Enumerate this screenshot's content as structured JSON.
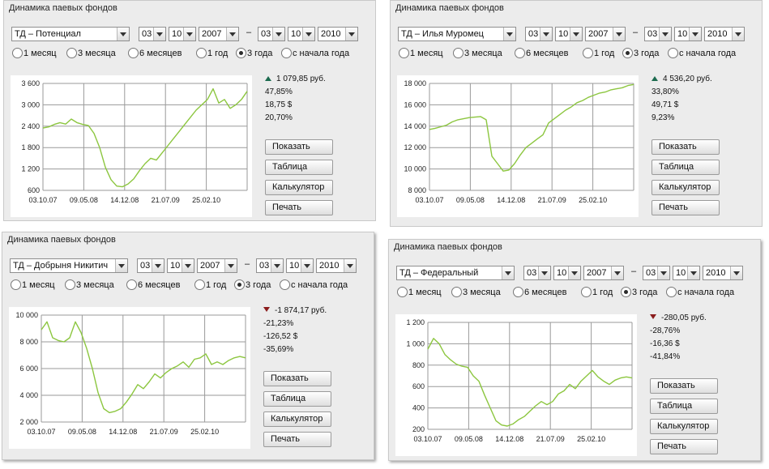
{
  "panels": [
    {
      "title": "Динамика паевых фондов",
      "fund": "ТД – Потенциал",
      "from": {
        "day": "03",
        "month": "10",
        "year": "2007"
      },
      "to": {
        "day": "03",
        "month": "10",
        "year": "2010"
      },
      "dash": "–",
      "periods": [
        "1 месяц",
        "3 месяца",
        "6 месяцев",
        "1 год",
        "3 года",
        "с начала года"
      ],
      "selected_period": "3 года",
      "change": {
        "direction": "up",
        "rub": "1 079,85 руб.",
        "pct": "47,85%",
        "usd": "18,75 $",
        "usd_pct": "20,70%"
      },
      "buttons": {
        "show": "Показать",
        "table": "Таблица",
        "calc": "Калькулятор",
        "print": "Печать"
      }
    },
    {
      "title": "Динамика паевых фондов",
      "fund": "ТД – Илья Муромец",
      "from": {
        "day": "03",
        "month": "10",
        "year": "2007"
      },
      "to": {
        "day": "03",
        "month": "10",
        "year": "2010"
      },
      "dash": "–",
      "periods": [
        "1 месяц",
        "3 месяца",
        "6 месяцев",
        "1 год",
        "3 года",
        "с начала года"
      ],
      "selected_period": "3 года",
      "change": {
        "direction": "up",
        "rub": "4 536,20 руб.",
        "pct": "33,80%",
        "usd": "49,71 $",
        "usd_pct": "9,23%"
      },
      "buttons": {
        "show": "Показать",
        "table": "Таблица",
        "calc": "Калькулятор",
        "print": "Печать"
      }
    },
    {
      "title": "Динамика паевых фондов",
      "fund": "ТД – Добрыня Никитич",
      "from": {
        "day": "03",
        "month": "10",
        "year": "2007"
      },
      "to": {
        "day": "03",
        "month": "10",
        "year": "2010"
      },
      "dash": "–",
      "periods": [
        "1 месяц",
        "3 месяца",
        "6 месяцев",
        "1 год",
        "3 года",
        "с начала года"
      ],
      "selected_period": "3 года",
      "change": {
        "direction": "down",
        "rub": "-1 874,17 руб.",
        "pct": "-21,23%",
        "usd": "-126,52 $",
        "usd_pct": "-35,69%"
      },
      "buttons": {
        "show": "Показать",
        "table": "Таблица",
        "calc": "Калькулятор",
        "print": "Печать"
      }
    },
    {
      "title": "Динамика паевых фондов",
      "fund": "ТД – Федеральный",
      "from": {
        "day": "03",
        "month": "10",
        "year": "2007"
      },
      "to": {
        "day": "03",
        "month": "10",
        "year": "2010"
      },
      "dash": "–",
      "periods": [
        "1 месяц",
        "3 месяца",
        "6 месяцев",
        "1 год",
        "3 года",
        "с начала года"
      ],
      "selected_period": "3 года",
      "change": {
        "direction": "down",
        "rub": "-280,05 руб.",
        "pct": "-28,76%",
        "usd": "-16,36 $",
        "usd_pct": "-41,84%"
      },
      "buttons": {
        "show": "Показать",
        "table": "Таблица",
        "calc": "Калькулятор",
        "print": "Печать"
      }
    }
  ],
  "colors": {
    "line": "#8cc63f",
    "grid": "#9a9a9a",
    "up": "#1c6b4f",
    "down": "#8b1c1c"
  },
  "chart_data": [
    {
      "type": "line",
      "categories": [
        "03.10.07",
        "09.05.08",
        "14.12.08",
        "21.07.09",
        "25.02.10"
      ],
      "yticks": [
        "3 600",
        "3 000",
        "2 400",
        "1 800",
        "1 200",
        "600"
      ],
      "ylim": [
        600,
        3600
      ],
      "xlim": [
        0,
        36
      ],
      "x": [
        0,
        1,
        2,
        3,
        4,
        5,
        6,
        7,
        8,
        9,
        10,
        11,
        12,
        13,
        14,
        15,
        16,
        17,
        18,
        19,
        20,
        21,
        22,
        23,
        24,
        25,
        26,
        27,
        28,
        29,
        30,
        31,
        32,
        33,
        34,
        35,
        36
      ],
      "values": [
        2350,
        2380,
        2450,
        2500,
        2460,
        2600,
        2500,
        2450,
        2420,
        2200,
        1800,
        1250,
        900,
        720,
        700,
        780,
        920,
        1150,
        1350,
        1500,
        1450,
        1650,
        1850,
        2050,
        2250,
        2450,
        2650,
        2850,
        3000,
        3150,
        3450,
        3050,
        3150,
        2900,
        3000,
        3150,
        3380
      ]
    },
    {
      "type": "line",
      "categories": [
        "03.10.07",
        "09.05.08",
        "14.12.08",
        "21.07.09",
        "25.02.10"
      ],
      "yticks": [
        "18 000",
        "16 000",
        "14 000",
        "12 000",
        "10 000",
        "8 000"
      ],
      "ylim": [
        8000,
        18000
      ],
      "xlim": [
        0,
        36
      ],
      "x": [
        0,
        1,
        2,
        3,
        4,
        5,
        6,
        7,
        8,
        9,
        10,
        11,
        12,
        13,
        14,
        15,
        16,
        17,
        18,
        19,
        20,
        21,
        22,
        23,
        24,
        25,
        26,
        27,
        28,
        29,
        30,
        31,
        32,
        33,
        34,
        35,
        36
      ],
      "values": [
        13700,
        13800,
        13950,
        14100,
        14400,
        14600,
        14700,
        14800,
        14850,
        14900,
        14600,
        11200,
        10500,
        9800,
        9900,
        10500,
        11300,
        12000,
        12400,
        12800,
        13200,
        14300,
        14700,
        15100,
        15500,
        15800,
        16200,
        16400,
        16700,
        16900,
        17100,
        17200,
        17400,
        17500,
        17600,
        17800,
        17900
      ]
    },
    {
      "type": "line",
      "categories": [
        "03.10.07",
        "09.05.08",
        "14.12.08",
        "21.07.09",
        "25.02.10"
      ],
      "yticks": [
        "10 000",
        "8 000",
        "6 000",
        "4 000",
        "2 000"
      ],
      "ylim": [
        2000,
        10000
      ],
      "xlim": [
        0,
        36
      ],
      "x": [
        0,
        1,
        2,
        3,
        4,
        5,
        6,
        7,
        8,
        9,
        10,
        11,
        12,
        13,
        14,
        15,
        16,
        17,
        18,
        19,
        20,
        21,
        22,
        23,
        24,
        25,
        26,
        27,
        28,
        29,
        30,
        31,
        32,
        33,
        34,
        35,
        36
      ],
      "values": [
        8900,
        9500,
        8300,
        8100,
        8000,
        8300,
        9500,
        8700,
        7500,
        6000,
        4200,
        3000,
        2700,
        2800,
        3000,
        3500,
        4100,
        4800,
        4500,
        5000,
        5600,
        5300,
        5700,
        6000,
        6200,
        6500,
        6100,
        6700,
        6800,
        7100,
        6300,
        6500,
        6300,
        6600,
        6800,
        6900,
        6800
      ]
    },
    {
      "type": "line",
      "categories": [
        "03.10.07",
        "09.05.08",
        "14.12.08",
        "21.07.09",
        "25.02.10"
      ],
      "yticks": [
        "1 200",
        "1 000",
        "800",
        "600",
        "400",
        "200"
      ],
      "ylim": [
        200,
        1200
      ],
      "xlim": [
        0,
        36
      ],
      "x": [
        0,
        1,
        2,
        3,
        4,
        5,
        6,
        7,
        8,
        9,
        10,
        11,
        12,
        13,
        14,
        15,
        16,
        17,
        18,
        19,
        20,
        21,
        22,
        23,
        24,
        25,
        26,
        27,
        28,
        29,
        30,
        31,
        32,
        33,
        34,
        35,
        36
      ],
      "values": [
        950,
        1050,
        1000,
        900,
        850,
        810,
        790,
        780,
        700,
        650,
        520,
        400,
        280,
        240,
        230,
        250,
        290,
        320,
        370,
        420,
        460,
        430,
        460,
        530,
        560,
        620,
        580,
        650,
        700,
        750,
        690,
        650,
        620,
        660,
        680,
        690,
        680
      ]
    }
  ]
}
